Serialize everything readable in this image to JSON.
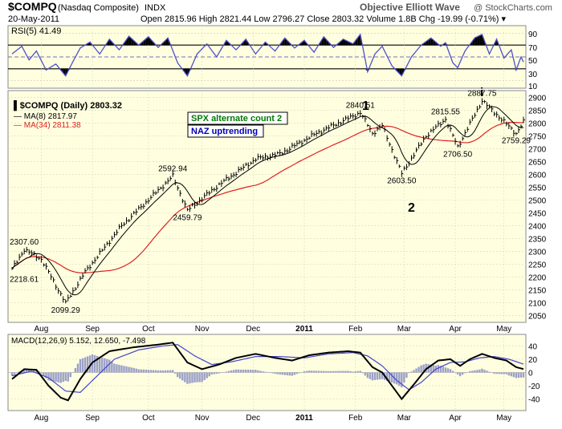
{
  "header": {
    "symbol": "$COMPQ",
    "name": "(Nasdaq Composite)",
    "exchange": "INDX",
    "date": "20-May-2011",
    "watermark": "Objective Elliott Wave",
    "copyright": "@ StockCharts.com",
    "quote": "Open 2815.96  High 2821.44  Low 2796.27  Close 2803.32  Volume 1.8B  Chg -19.99 (-0.71%) ▾"
  },
  "rsi": {
    "label": "RSI(5) 41.49",
    "levels": [
      10,
      30,
      50,
      70,
      90
    ],
    "tick_labels": [
      "90",
      "70",
      "50",
      "30",
      "10"
    ]
  },
  "legend": {
    "series": "$COMPQ (Daily) 2803.32",
    "ma8": "MA(8) 2817.97",
    "ma34": "MA(34) 2811.38"
  },
  "annotations": {
    "spx_box": "SPX alternate count 2",
    "naz_box": "NAZ uptrending",
    "wave_1": "1",
    "wave_2": "2",
    "wave_i": "i"
  },
  "price_labels": [
    {
      "text": "2307.60",
      "t": 1,
      "v": 2307.6,
      "anchor": "start"
    },
    {
      "text": "2218.61",
      "t": 1,
      "v": 2218.61,
      "anchor": "start"
    },
    {
      "text": "2099.29",
      "t": 22,
      "v": 2099.29,
      "anchor": "middle"
    },
    {
      "text": "2592.94",
      "t": 66,
      "v": 2592.94,
      "anchor": "middle"
    },
    {
      "text": "2459.79",
      "t": 72,
      "v": 2459.79,
      "anchor": "middle"
    },
    {
      "text": "2840.51",
      "t": 143,
      "v": 2840.51,
      "anchor": "middle"
    },
    {
      "text": "2603.50",
      "t": 160,
      "v": 2603.5,
      "anchor": "middle"
    },
    {
      "text": "2815.55",
      "t": 178,
      "v": 2815.55,
      "anchor": "middle"
    },
    {
      "text": "2706.50",
      "t": 183,
      "v": 2706.5,
      "anchor": "middle"
    },
    {
      "text": "2887.75",
      "t": 193,
      "v": 2887.75,
      "anchor": "middle"
    },
    {
      "text": "2759.29",
      "t": 207,
      "v": 2759.29,
      "anchor": "middle"
    }
  ],
  "macd": {
    "label": "MACD(12,26,9) 5.152, 12.650, -7.498",
    "tick_labels": [
      "40",
      "20",
      "0",
      "-20",
      "-40"
    ]
  },
  "axis": {
    "month_labels": [
      "Aug",
      "Sep",
      "Oct",
      "Nov",
      "Dec",
      "2011",
      "Feb",
      "Mar",
      "Apr",
      "May"
    ],
    "price_ticks": [
      "2900",
      "2850",
      "2800",
      "2750",
      "2700",
      "2650",
      "2600",
      "2550",
      "2500",
      "2450",
      "2400",
      "2350",
      "2300",
      "2250",
      "2200",
      "2150",
      "2100",
      "2050"
    ]
  },
  "colors": {
    "panel_bg": "#ffffe0",
    "rsi_line": "#5050c8",
    "ma8": "#000000",
    "ma34": "#e02020",
    "macd_line": "#000000",
    "signal_line": "#4444cc",
    "hist": "#9ba0c8",
    "spx_text": "#007a00",
    "naz_text": "#0000b0"
  },
  "chart_data": {
    "type": "line",
    "title": "$COMPQ (Nasdaq Composite) Daily",
    "x_range": [
      "2010-07-21",
      "2011-05-20"
    ],
    "price_ylim": [
      2030,
      2920
    ],
    "key_points": [
      {
        "t": 0,
        "v": 2230
      },
      {
        "t": 5,
        "v": 2307.6
      },
      {
        "t": 12,
        "v": 2270
      },
      {
        "t": 22,
        "v": 2099.29
      },
      {
        "t": 30,
        "v": 2220
      },
      {
        "t": 45,
        "v": 2400
      },
      {
        "t": 66,
        "v": 2592.94
      },
      {
        "t": 72,
        "v": 2459.79
      },
      {
        "t": 85,
        "v": 2560
      },
      {
        "t": 100,
        "v": 2660
      },
      {
        "t": 110,
        "v": 2680
      },
      {
        "t": 125,
        "v": 2760
      },
      {
        "t": 143,
        "v": 2840.51
      },
      {
        "t": 148,
        "v": 2760
      },
      {
        "t": 152,
        "v": 2790
      },
      {
        "t": 160,
        "v": 2603.5
      },
      {
        "t": 170,
        "v": 2750
      },
      {
        "t": 178,
        "v": 2815.55
      },
      {
        "t": 183,
        "v": 2706.5
      },
      {
        "t": 193,
        "v": 2887.75
      },
      {
        "t": 207,
        "v": 2759.29
      },
      {
        "t": 210,
        "v": 2803.32
      }
    ],
    "rsi_ylim": [
      0,
      100
    ],
    "rsi_points": [
      {
        "t": 0,
        "v": 55
      },
      {
        "t": 4,
        "v": 68
      },
      {
        "t": 7,
        "v": 45
      },
      {
        "t": 10,
        "v": 60
      },
      {
        "t": 14,
        "v": 28
      },
      {
        "t": 18,
        "v": 38
      },
      {
        "t": 22,
        "v": 18
      },
      {
        "t": 25,
        "v": 42
      },
      {
        "t": 28,
        "v": 65
      },
      {
        "t": 32,
        "v": 75
      },
      {
        "t": 36,
        "v": 55
      },
      {
        "t": 40,
        "v": 80
      },
      {
        "t": 44,
        "v": 62
      },
      {
        "t": 48,
        "v": 85
      },
      {
        "t": 52,
        "v": 70
      },
      {
        "t": 56,
        "v": 84
      },
      {
        "t": 60,
        "v": 66
      },
      {
        "t": 64,
        "v": 82
      },
      {
        "t": 68,
        "v": 40
      },
      {
        "t": 72,
        "v": 18
      },
      {
        "t": 76,
        "v": 55
      },
      {
        "t": 80,
        "v": 72
      },
      {
        "t": 84,
        "v": 50
      },
      {
        "t": 88,
        "v": 78
      },
      {
        "t": 92,
        "v": 62
      },
      {
        "t": 96,
        "v": 80
      },
      {
        "t": 100,
        "v": 55
      },
      {
        "t": 104,
        "v": 75
      },
      {
        "t": 108,
        "v": 60
      },
      {
        "t": 112,
        "v": 82
      },
      {
        "t": 116,
        "v": 65
      },
      {
        "t": 120,
        "v": 78
      },
      {
        "t": 124,
        "v": 58
      },
      {
        "t": 128,
        "v": 84
      },
      {
        "t": 132,
        "v": 66
      },
      {
        "t": 136,
        "v": 80
      },
      {
        "t": 140,
        "v": 72
      },
      {
        "t": 143,
        "v": 88
      },
      {
        "t": 146,
        "v": 25
      },
      {
        "t": 149,
        "v": 55
      },
      {
        "t": 152,
        "v": 68
      },
      {
        "t": 156,
        "v": 35
      },
      {
        "t": 160,
        "v": 18
      },
      {
        "t": 164,
        "v": 50
      },
      {
        "t": 168,
        "v": 70
      },
      {
        "t": 172,
        "v": 82
      },
      {
        "t": 176,
        "v": 68
      },
      {
        "t": 178,
        "v": 74
      },
      {
        "t": 181,
        "v": 40
      },
      {
        "t": 183,
        "v": 32
      },
      {
        "t": 186,
        "v": 60
      },
      {
        "t": 190,
        "v": 82
      },
      {
        "t": 193,
        "v": 88
      },
      {
        "t": 196,
        "v": 55
      },
      {
        "t": 199,
        "v": 80
      },
      {
        "t": 202,
        "v": 48
      },
      {
        "t": 205,
        "v": 62
      },
      {
        "t": 207,
        "v": 28
      },
      {
        "t": 209,
        "v": 50
      },
      {
        "t": 210,
        "v": 41.49
      }
    ],
    "macd_ylim": [
      -55,
      55
    ],
    "macd_points": [
      {
        "t": 0,
        "v": -10
      },
      {
        "t": 5,
        "v": 5
      },
      {
        "t": 10,
        "v": 4
      },
      {
        "t": 15,
        "v": -20
      },
      {
        "t": 20,
        "v": -38
      },
      {
        "t": 23,
        "v": -42
      },
      {
        "t": 28,
        "v": -10
      },
      {
        "t": 33,
        "v": 15
      },
      {
        "t": 40,
        "v": 32
      },
      {
        "t": 50,
        "v": 38
      },
      {
        "t": 60,
        "v": 42
      },
      {
        "t": 66,
        "v": 45
      },
      {
        "t": 72,
        "v": 15
      },
      {
        "t": 78,
        "v": 5
      },
      {
        "t": 85,
        "v": 12
      },
      {
        "t": 92,
        "v": 22
      },
      {
        "t": 100,
        "v": 28
      },
      {
        "t": 108,
        "v": 22
      },
      {
        "t": 115,
        "v": 18
      },
      {
        "t": 122,
        "v": 26
      },
      {
        "t": 130,
        "v": 30
      },
      {
        "t": 138,
        "v": 32
      },
      {
        "t": 143,
        "v": 30
      },
      {
        "t": 148,
        "v": 8
      },
      {
        "t": 152,
        "v": 0
      },
      {
        "t": 156,
        "v": -20
      },
      {
        "t": 160,
        "v": -40
      },
      {
        "t": 165,
        "v": -18
      },
      {
        "t": 170,
        "v": 5
      },
      {
        "t": 175,
        "v": 18
      },
      {
        "t": 180,
        "v": 20
      },
      {
        "t": 184,
        "v": 10
      },
      {
        "t": 188,
        "v": 20
      },
      {
        "t": 193,
        "v": 28
      },
      {
        "t": 198,
        "v": 22
      },
      {
        "t": 203,
        "v": 18
      },
      {
        "t": 207,
        "v": 8
      },
      {
        "t": 210,
        "v": 5.152
      }
    ],
    "signal_points": [
      {
        "t": 0,
        "v": -5
      },
      {
        "t": 8,
        "v": 2
      },
      {
        "t": 15,
        "v": -8
      },
      {
        "t": 22,
        "v": -28
      },
      {
        "t": 28,
        "v": -30
      },
      {
        "t": 35,
        "v": -5
      },
      {
        "t": 42,
        "v": 20
      },
      {
        "t": 52,
        "v": 34
      },
      {
        "t": 62,
        "v": 40
      },
      {
        "t": 68,
        "v": 42
      },
      {
        "t": 75,
        "v": 25
      },
      {
        "t": 82,
        "v": 12
      },
      {
        "t": 90,
        "v": 16
      },
      {
        "t": 100,
        "v": 24
      },
      {
        "t": 110,
        "v": 24
      },
      {
        "t": 120,
        "v": 22
      },
      {
        "t": 130,
        "v": 28
      },
      {
        "t": 140,
        "v": 30
      },
      {
        "t": 146,
        "v": 25
      },
      {
        "t": 152,
        "v": 10
      },
      {
        "t": 158,
        "v": -12
      },
      {
        "t": 163,
        "v": -26
      },
      {
        "t": 168,
        "v": -15
      },
      {
        "t": 174,
        "v": 5
      },
      {
        "t": 180,
        "v": 15
      },
      {
        "t": 186,
        "v": 16
      },
      {
        "t": 192,
        "v": 22
      },
      {
        "t": 198,
        "v": 24
      },
      {
        "t": 204,
        "v": 20
      },
      {
        "t": 210,
        "v": 12.65
      }
    ]
  }
}
